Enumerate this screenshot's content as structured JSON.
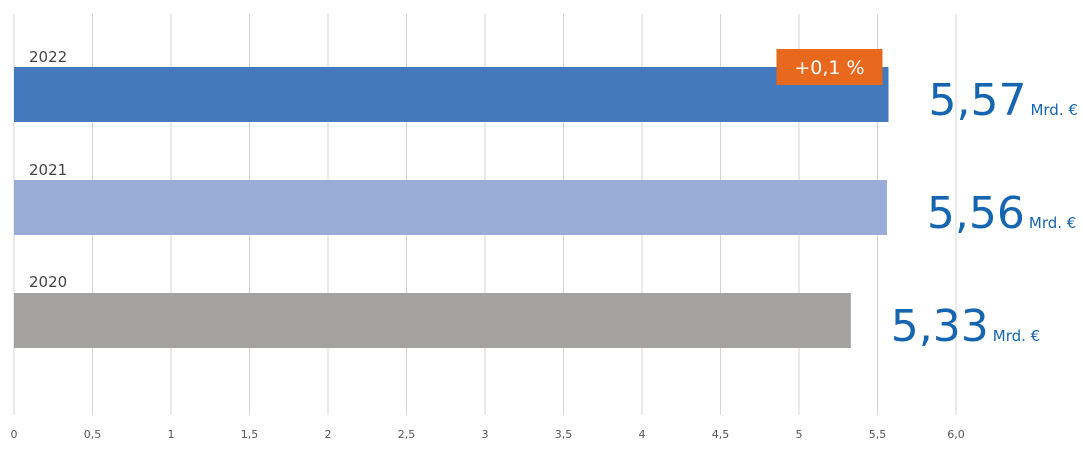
{
  "chart_data": {
    "type": "bar",
    "orientation": "horizontal",
    "title": "",
    "xlabel": "",
    "ylabel": "",
    "xlim": [
      0,
      6.0
    ],
    "grid": true,
    "x_ticks": [
      "0",
      "0,5",
      "1",
      "1,5",
      "2",
      "2,5",
      "3",
      "3,5",
      "4",
      "4,5",
      "5",
      "5,5",
      "6,0"
    ],
    "categories": [
      "2022",
      "2021",
      "2020"
    ],
    "values": [
      5.57,
      5.56,
      5.33
    ],
    "value_labels": [
      "5,57",
      "5,56",
      "5,33"
    ],
    "unit": "Mrd. €",
    "colors": [
      "#4479be",
      "#9aadd8",
      "#a4a2a1"
    ],
    "value_label_color": "#1565b0",
    "annotation": {
      "category": "2022",
      "text": "+0,1 %",
      "color": "#e8691e"
    }
  }
}
